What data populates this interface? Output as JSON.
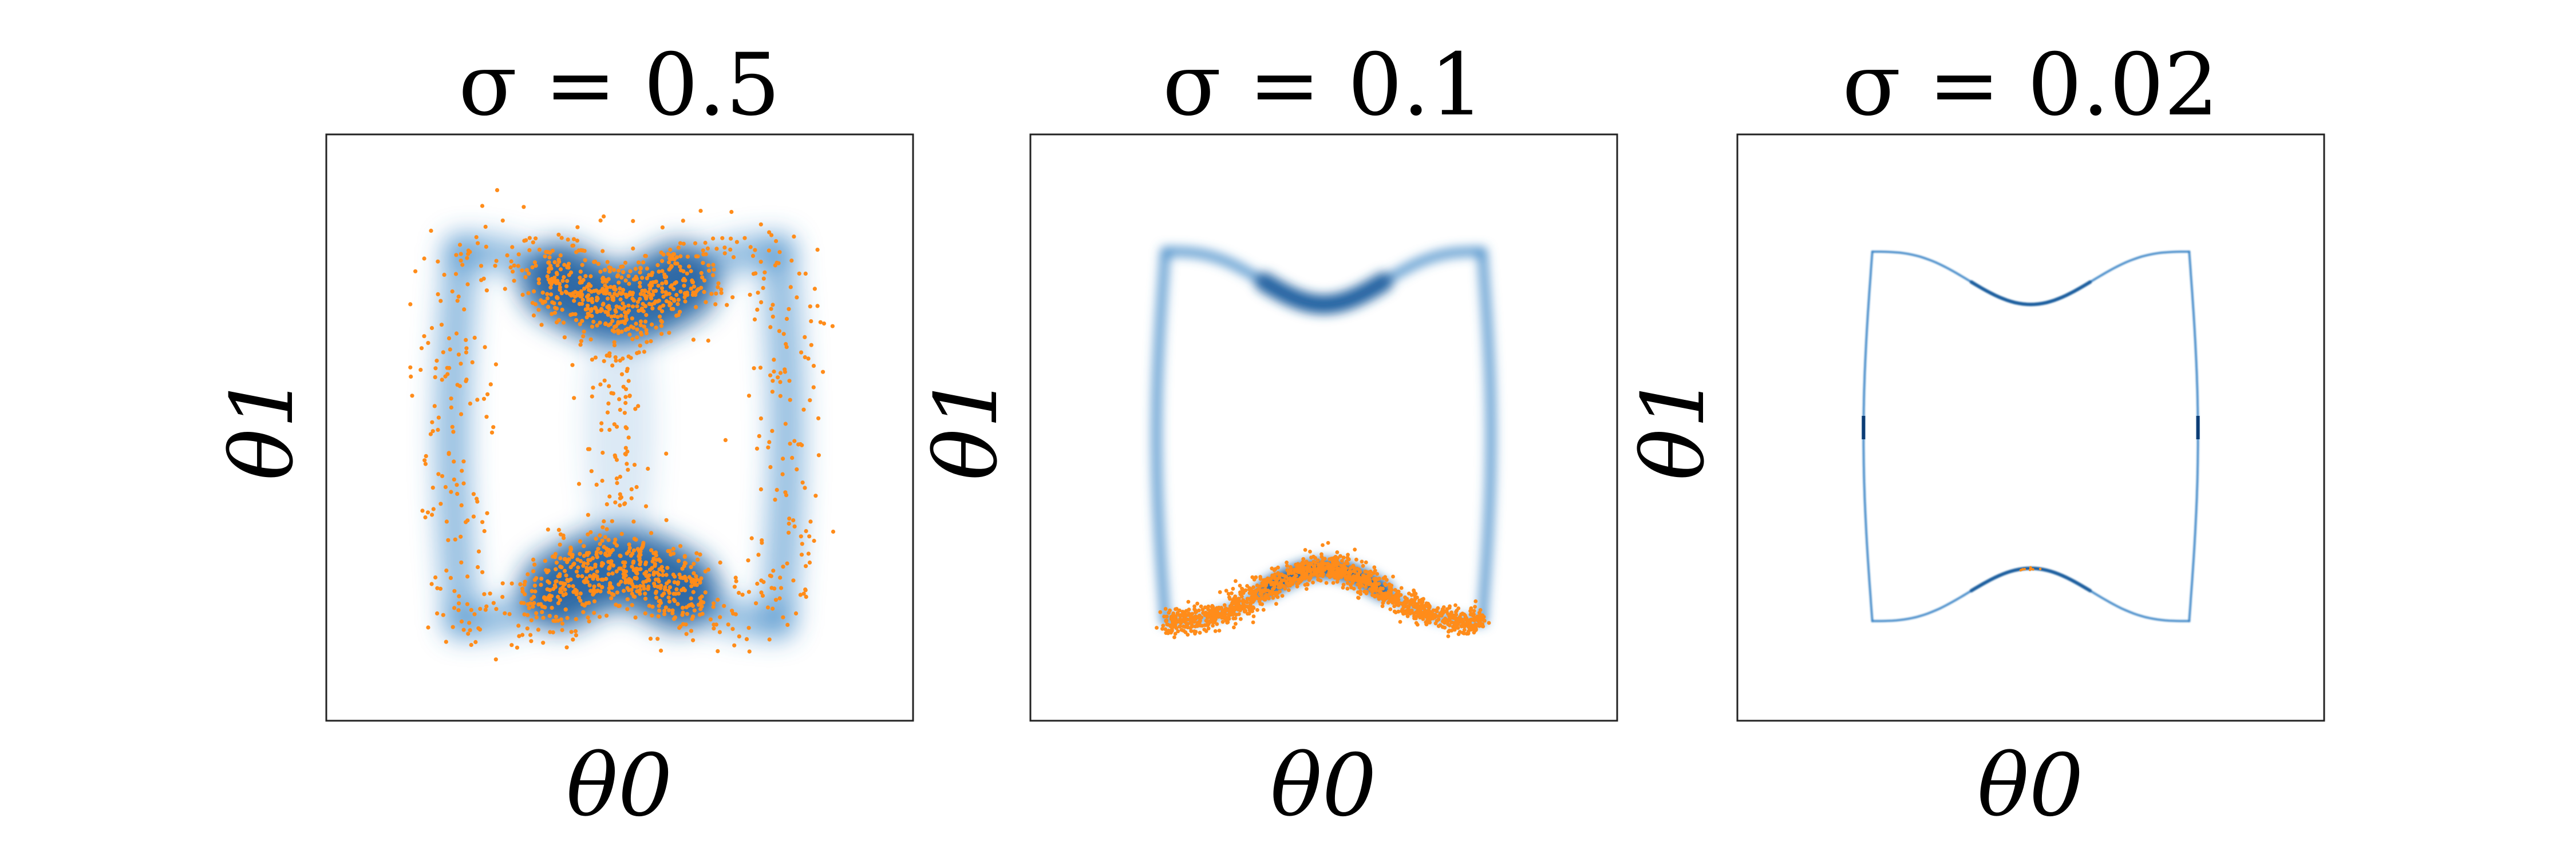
{
  "chart_data": [
    {
      "type": "scatter",
      "title": "σ = 0.5",
      "sigma": 0.5,
      "xlabel": "θ0",
      "ylabel": "θ1",
      "density_shape": "closed curve (bone shape), heavily blurred",
      "samples": "scattered around the whole curve, denser at top and bottom lobes",
      "grid": false,
      "ticks": false,
      "colors": {
        "density": "#1f5f9f",
        "samples": "#ff8c1a"
      }
    },
    {
      "type": "scatter",
      "title": "σ = 0.1",
      "sigma": 0.1,
      "xlabel": "θ0",
      "ylabel": "θ1",
      "density_shape": "closed curve (bone shape), lightly blurred",
      "samples": "concentrated on the bottom lobe only",
      "grid": false,
      "ticks": false,
      "colors": {
        "density": "#1f5f9f",
        "samples": "#ff8c1a"
      }
    },
    {
      "type": "scatter",
      "title": "σ = 0.02",
      "sigma": 0.02,
      "xlabel": "θ0",
      "ylabel": "θ1",
      "density_shape": "closed curve (bone shape), sharp",
      "samples": "a few points at the bottom lobe",
      "grid": false,
      "ticks": false,
      "colors": {
        "density": "#1f5f9f",
        "samples": "#ff8c1a"
      }
    }
  ]
}
